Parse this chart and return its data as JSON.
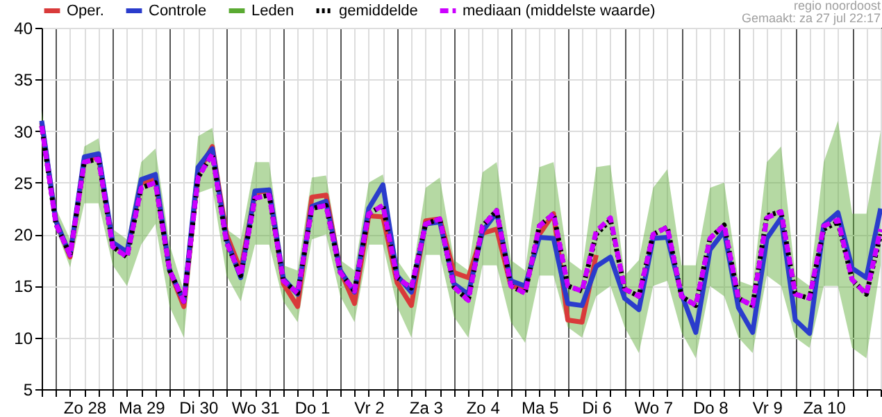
{
  "chart_data": {
    "type": "line",
    "annotations": [
      "regio noordoost",
      "Gemaakt: za 27 jul 22:17"
    ],
    "x": [
      "--07-27T18:00",
      "--07-28T00:00",
      "--07-28T06:00",
      "--07-28T12:00",
      "--07-28T18:00",
      "--07-29T00:00",
      "--07-29T06:00",
      "--07-29T12:00",
      "--07-29T18:00",
      "--07-30T00:00",
      "--07-30T06:00",
      "--07-30T12:00",
      "--07-30T18:00",
      "--07-31T00:00",
      "--07-31T06:00",
      "--07-31T12:00",
      "--07-31T18:00",
      "--08-01T00:00",
      "--08-01T06:00",
      "--08-01T12:00",
      "--08-01T18:00",
      "--08-02T00:00",
      "--08-02T06:00",
      "--08-02T12:00",
      "--08-02T18:00",
      "--08-03T00:00",
      "--08-03T06:00",
      "--08-03T12:00",
      "--08-03T18:00",
      "--08-04T00:00",
      "--08-04T06:00",
      "--08-04T12:00",
      "--08-04T18:00",
      "--08-05T00:00",
      "--08-05T06:00",
      "--08-05T12:00",
      "--08-05T18:00",
      "--08-06T00:00",
      "--08-06T06:00",
      "--08-06T12:00",
      "--08-06T18:00",
      "--08-07T00:00",
      "--08-07T06:00",
      "--08-07T12:00",
      "--08-07T18:00",
      "--08-08T00:00",
      "--08-08T06:00",
      "--08-08T12:00",
      "--08-08T18:00",
      "--08-09T00:00",
      "--08-09T06:00",
      "--08-09T12:00",
      "--08-09T18:00",
      "--08-10T00:00",
      "--08-10T06:00",
      "--08-10T12:00",
      "--08-10T18:00",
      "--08-11T00:00",
      "--08-11T06:00",
      "--08-11T12:00"
    ],
    "xlim": [
      "--07-27T18:00",
      "--08-11T12:00"
    ],
    "xticks": [
      {
        "value": "--07-27T18:00",
        "label": null
      },
      {
        "value": "--07-28T00:00",
        "label": null
      },
      {
        "value": "--07-28T06:00",
        "label": null
      },
      {
        "value": "--07-28T12:00",
        "label": "Zo 28"
      },
      {
        "value": "--07-28T18:00",
        "label": null
      },
      {
        "value": "--07-29T00:00",
        "label": null
      },
      {
        "value": "--07-29T06:00",
        "label": null
      },
      {
        "value": "--07-29T12:00",
        "label": "Ma 29"
      },
      {
        "value": "--07-29T18:00",
        "label": null
      },
      {
        "value": "--07-30T00:00",
        "label": null
      },
      {
        "value": "--07-30T06:00",
        "label": null
      },
      {
        "value": "--07-30T12:00",
        "label": "Di 30"
      },
      {
        "value": "--07-30T18:00",
        "label": null
      },
      {
        "value": "--07-31T00:00",
        "label": null
      },
      {
        "value": "--07-31T06:00",
        "label": null
      },
      {
        "value": "--07-31T12:00",
        "label": "Wo 31"
      },
      {
        "value": "--07-31T18:00",
        "label": null
      },
      {
        "value": "--08-01T00:00",
        "label": null
      },
      {
        "value": "--08-01T06:00",
        "label": null
      },
      {
        "value": "--08-01T12:00",
        "label": "Do 1"
      },
      {
        "value": "--08-01T18:00",
        "label": null
      },
      {
        "value": "--08-02T00:00",
        "label": null
      },
      {
        "value": "--08-02T06:00",
        "label": null
      },
      {
        "value": "--08-02T12:00",
        "label": "Vr 2"
      },
      {
        "value": "--08-02T18:00",
        "label": null
      },
      {
        "value": "--08-03T00:00",
        "label": null
      },
      {
        "value": "--08-03T06:00",
        "label": null
      },
      {
        "value": "--08-03T12:00",
        "label": "Za 3"
      },
      {
        "value": "--08-03T18:00",
        "label": null
      },
      {
        "value": "--08-04T00:00",
        "label": null
      },
      {
        "value": "--08-04T06:00",
        "label": null
      },
      {
        "value": "--08-04T12:00",
        "label": "Zo 4"
      },
      {
        "value": "--08-04T18:00",
        "label": null
      },
      {
        "value": "--08-05T00:00",
        "label": null
      },
      {
        "value": "--08-05T06:00",
        "label": null
      },
      {
        "value": "--08-05T12:00",
        "label": "Ma 5"
      },
      {
        "value": "--08-05T18:00",
        "label": null
      },
      {
        "value": "--08-06T00:00",
        "label": null
      },
      {
        "value": "--08-06T06:00",
        "label": null
      },
      {
        "value": "--08-06T12:00",
        "label": "Di 6"
      },
      {
        "value": "--08-06T18:00",
        "label": null
      },
      {
        "value": "--08-07T00:00",
        "label": null
      },
      {
        "value": "--08-07T06:00",
        "label": null
      },
      {
        "value": "--08-07T12:00",
        "label": "Wo 7"
      },
      {
        "value": "--08-07T18:00",
        "label": null
      },
      {
        "value": "--08-08T00:00",
        "label": null
      },
      {
        "value": "--08-08T06:00",
        "label": null
      },
      {
        "value": "--08-08T12:00",
        "label": "Do 8"
      },
      {
        "value": "--08-08T18:00",
        "label": null
      },
      {
        "value": "--08-09T00:00",
        "label": null
      },
      {
        "value": "--08-09T06:00",
        "label": null
      },
      {
        "value": "--08-09T12:00",
        "label": "Vr 9"
      },
      {
        "value": "--08-09T18:00",
        "label": null
      },
      {
        "value": "--08-10T00:00",
        "label": null
      },
      {
        "value": "--08-10T06:00",
        "label": null
      },
      {
        "value": "--08-10T12:00",
        "label": "Za 10"
      },
      {
        "value": "--08-10T18:00",
        "label": null
      },
      {
        "value": "--08-11T00:00",
        "label": null
      },
      {
        "value": "--08-11T06:00",
        "label": null
      },
      {
        "value": "--08-11T12:00",
        "label": null
      }
    ],
    "ylim": [
      5,
      40
    ],
    "yticks": [
      5,
      10,
      15,
      20,
      25,
      30,
      35,
      40
    ],
    "grid": true,
    "legend": "top",
    "marker": "none",
    "series": [
      {
        "name": "Oper.",
        "color": "#d93a3a",
        "line_style": "solid",
        "values": [
          30.8,
          21.3,
          17.8,
          27.2,
          27.5,
          19,
          18.2,
          25,
          25.3,
          16.5,
          13,
          26,
          28.5,
          20,
          16.5,
          24,
          24.3,
          15.2,
          13,
          23.6,
          23.8,
          16.5,
          13.3,
          21.8,
          21.7,
          15.3,
          13.1,
          21.3,
          21.5,
          16.3,
          15.8,
          20.1,
          20.5,
          15,
          14.8,
          20,
          22,
          11.7,
          11.5,
          18,
          null,
          null,
          null,
          null,
          null,
          null,
          null,
          null,
          null,
          null,
          null,
          null,
          null,
          null,
          null,
          null,
          null,
          null,
          null,
          null
        ]
      },
      {
        "name": "Controle",
        "color": "#2a3ccc",
        "line_style": "solid",
        "values": [
          31,
          21.3,
          18,
          27.5,
          27.8,
          19.2,
          18.3,
          25.3,
          25.8,
          16.5,
          13.5,
          26.5,
          28.3,
          19.5,
          15.8,
          24.2,
          24.3,
          15.7,
          14.2,
          22.7,
          23.2,
          16.5,
          14.4,
          22.5,
          24.8,
          16,
          14.4,
          21,
          21.2,
          15.2,
          14.2,
          20.3,
          22.1,
          15.5,
          15,
          19.7,
          19.6,
          13.3,
          13.1,
          16.9,
          17.8,
          13.8,
          12.7,
          19.6,
          19.7,
          14.2,
          10.5,
          18.5,
          20.3,
          12.9,
          10.5,
          19.6,
          21.6,
          11.7,
          10.4,
          20.9,
          22.1,
          16.7,
          15.8,
          22.5
        ]
      },
      {
        "name": "Leden",
        "color": "#5aaa32",
        "line_style": "solid",
        "values": [
          null,
          null,
          null,
          null,
          null,
          null,
          null,
          null,
          null,
          null,
          null,
          null,
          null,
          null,
          null,
          null,
          null,
          null,
          null,
          null,
          null,
          null,
          null,
          null,
          null,
          null,
          null,
          null,
          null,
          null,
          null,
          null,
          null,
          null,
          null,
          null,
          null,
          null,
          null,
          null,
          null,
          null,
          null,
          null,
          null,
          null,
          null,
          null,
          null,
          null,
          null,
          null,
          null,
          null,
          null,
          null,
          null,
          null,
          null,
          null
        ],
        "lower": [
          28.5,
          20.5,
          16.8,
          23,
          23,
          17,
          15,
          19,
          21,
          13,
          10,
          24,
          24.5,
          16,
          13.5,
          19,
          19,
          13.5,
          11.5,
          19.5,
          20,
          14,
          11.5,
          19,
          19,
          13,
          10,
          18,
          18,
          12,
          10,
          17,
          17,
          11.5,
          9.5,
          16,
          16,
          11,
          10,
          14,
          15,
          11,
          8.5,
          15,
          15.5,
          10.5,
          8,
          15,
          14,
          10,
          8.5,
          16,
          15,
          10,
          9,
          15,
          15,
          9,
          8,
          17
        ],
        "upper": [
          32,
          22.5,
          19.5,
          28.5,
          29.3,
          20.5,
          19.5,
          27,
          28.3,
          19,
          14.5,
          29.5,
          30.3,
          20.5,
          19.5,
          27,
          27,
          17,
          16.5,
          25.5,
          25.7,
          17.5,
          16.5,
          25,
          25.8,
          17.5,
          15.5,
          24.5,
          25.5,
          17.5,
          16.5,
          26,
          27,
          17.5,
          16.5,
          26.5,
          27,
          17.5,
          16.5,
          26.5,
          26.7,
          16,
          17.5,
          24.5,
          26.3,
          17,
          17,
          24.5,
          25,
          15.5,
          15,
          27,
          28.5,
          16,
          15,
          27,
          31,
          22,
          22,
          30
        ]
      },
      {
        "name": "gemiddelde",
        "color": "#000000",
        "line_style": "dotted",
        "values": [
          30.5,
          21,
          18,
          27,
          27.3,
          18.8,
          17.8,
          24.5,
          25,
          16.5,
          13.5,
          25.5,
          27.8,
          19.2,
          16,
          23.5,
          23.8,
          15.5,
          14.3,
          22.5,
          22.8,
          16.3,
          14.5,
          22,
          22.8,
          15.8,
          14.8,
          21,
          21.5,
          14.9,
          13.6,
          20.8,
          22.3,
          15,
          14.3,
          20.8,
          22,
          15,
          14.5,
          20,
          21.4,
          14.7,
          14,
          20,
          20.7,
          14,
          13.1,
          19.6,
          20.9,
          13.8,
          13.1,
          21.8,
          22.2,
          14.2,
          13.8,
          20.5,
          21.2,
          15.6,
          14.2,
          20
        ]
      },
      {
        "name": "mediaan (middelste waarde)",
        "color": "#cc00ff",
        "line_style": "dashed",
        "values": [
          30.5,
          21,
          18,
          27,
          27.3,
          18.8,
          17.8,
          24.5,
          25,
          16.5,
          13.5,
          25.5,
          27.8,
          19.2,
          16,
          23.5,
          23.8,
          15.5,
          14.3,
          22.5,
          22.8,
          16.3,
          14.5,
          22,
          22.8,
          15.8,
          14.8,
          21,
          21.5,
          14.9,
          13.6,
          20.8,
          22.3,
          15,
          14.3,
          20.8,
          22,
          15,
          14.5,
          20.3,
          21.6,
          14.7,
          14,
          20,
          20.7,
          14,
          13.1,
          19.6,
          20.9,
          13.8,
          13.1,
          21.6,
          22.2,
          14.2,
          13.8,
          20.8,
          21.4,
          15.6,
          14.2,
          20.5
        ]
      }
    ]
  }
}
